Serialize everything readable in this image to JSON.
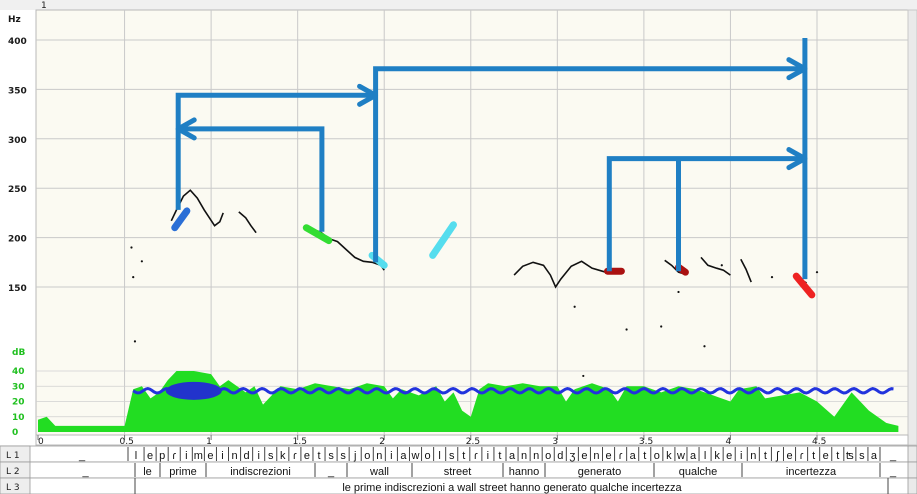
{
  "window": {
    "left_marker": "1"
  },
  "chart_data": {
    "type": "line",
    "ylabel": "Hz",
    "db_label": "dB",
    "yticks": [
      150,
      200,
      250,
      300,
      350,
      400
    ],
    "ylim": [
      100,
      420
    ],
    "db_ticks": [
      0,
      10,
      20,
      30,
      40
    ],
    "xticks": [
      0,
      0.5,
      1,
      1.5,
      2,
      2.5,
      3,
      3.5,
      4,
      4.5
    ],
    "xtick_labels": [
      "0",
      "0.5",
      "1",
      "1.5",
      "2",
      "2.5",
      "3",
      "3.5",
      "4",
      "4.5"
    ],
    "xlim": [
      0,
      4.97
    ],
    "pitch_contour": [
      {
        "name": "",
        "points": [
          [
            0.77,
            217
          ],
          [
            0.8,
            228
          ],
          [
            0.84,
            242
          ],
          [
            0.88,
            248
          ],
          [
            0.92,
            240
          ],
          [
            0.96,
            228
          ],
          [
            0.99,
            220
          ],
          [
            1.02,
            212
          ],
          [
            1.05,
            216
          ],
          [
            1.07,
            225
          ]
        ]
      },
      {
        "name": "",
        "points": [
          [
            1.16,
            226
          ],
          [
            1.2,
            220
          ],
          [
            1.23,
            212
          ],
          [
            1.26,
            205
          ]
        ]
      },
      {
        "name": "",
        "points": [
          [
            1.58,
            208
          ],
          [
            1.63,
            206
          ],
          [
            1.68,
            199
          ],
          [
            1.73,
            196
          ],
          [
            1.78,
            188
          ],
          [
            1.83,
            180
          ],
          [
            1.88,
            176
          ],
          [
            1.93,
            175
          ],
          [
            1.98,
            172
          ],
          [
            2.0,
            167
          ]
        ]
      },
      {
        "name": "",
        "points": [
          [
            2.75,
            162
          ],
          [
            2.8,
            171
          ],
          [
            2.86,
            175
          ],
          [
            2.92,
            172
          ],
          [
            2.96,
            162
          ],
          [
            2.99,
            150
          ],
          [
            3.02,
            158
          ],
          [
            3.08,
            171
          ],
          [
            3.14,
            176
          ],
          [
            3.2,
            169
          ],
          [
            3.26,
            166
          ],
          [
            3.3,
            164
          ]
        ]
      },
      {
        "name": "",
        "points": [
          [
            3.62,
            177
          ],
          [
            3.66,
            172
          ],
          [
            3.7,
            165
          ],
          [
            3.74,
            163
          ]
        ]
      },
      {
        "name": "",
        "points": [
          [
            3.83,
            180
          ],
          [
            3.87,
            172
          ],
          [
            3.92,
            169
          ],
          [
            3.96,
            167
          ],
          [
            4.0,
            162
          ]
        ]
      },
      {
        "name": "",
        "points": [
          [
            4.06,
            178
          ],
          [
            4.09,
            168
          ],
          [
            4.12,
            155
          ]
        ]
      },
      {
        "name": "",
        "points": [
          [
            4.4,
            158
          ],
          [
            4.44,
            154
          ]
        ]
      }
    ],
    "highlights": [
      {
        "color": "#2b6fd6",
        "from": [
          0.79,
          210
        ],
        "to": [
          0.86,
          227
        ]
      },
      {
        "color": "#33dd33",
        "from": [
          1.55,
          210
        ],
        "to": [
          1.68,
          197
        ]
      },
      {
        "color": "#55ddee",
        "from": [
          1.93,
          182
        ],
        "to": [
          2.0,
          172
        ]
      },
      {
        "color": "#55ddee",
        "from": [
          2.28,
          182
        ],
        "to": [
          2.4,
          213
        ]
      },
      {
        "color": "#aa1111",
        "from": [
          3.29,
          166
        ],
        "to": [
          3.37,
          166
        ]
      },
      {
        "color": "#aa1111",
        "from": [
          3.7,
          170
        ],
        "to": [
          3.74,
          165
        ]
      },
      {
        "color": "#ee2222",
        "from": [
          4.38,
          161
        ],
        "to": [
          4.47,
          142
        ]
      }
    ],
    "arrow_color": "#1f7fc4",
    "arrows": [
      {
        "path": [
          [
            1.64,
            206
          ],
          [
            1.64,
            310
          ],
          [
            0.81,
            310
          ]
        ]
      },
      {
        "path": [
          [
            0.81,
            228
          ],
          [
            0.81,
            344
          ],
          [
            1.95,
            344
          ]
        ]
      },
      {
        "path": [
          [
            1.95,
            175
          ],
          [
            1.95,
            371
          ],
          [
            4.43,
            371
          ]
        ]
      },
      {
        "path": [
          [
            3.3,
            166
          ],
          [
            3.3,
            280
          ],
          [
            4.43,
            280
          ]
        ]
      },
      {
        "path": [
          [
            3.7,
            166
          ],
          [
            3.7,
            280
          ]
        ]
      },
      {
        "path": [
          [
            4.43,
            158
          ],
          [
            4.43,
            402
          ]
        ]
      }
    ],
    "tiers": [
      {
        "label": "L 1",
        "cells": [
          "_",
          "l",
          "e",
          "p",
          "ɾ",
          "i",
          "m",
          "e",
          "i",
          "n",
          "d",
          "i",
          "s",
          "k",
          "ɾ",
          "e",
          "t",
          "s",
          "s",
          "j",
          "o",
          "n",
          "i",
          "a",
          "w",
          "o",
          "l",
          "s",
          "t",
          "ɾ",
          "i",
          "t",
          "a",
          "n",
          "n",
          "o",
          "d",
          "ʒ",
          "e",
          "n",
          "e",
          "ɾ",
          "a",
          "t",
          "o",
          "k",
          "w",
          "a",
          "l",
          "k",
          "e",
          "i",
          "n",
          "t",
          "ʃ",
          "e",
          "ɾ",
          "t",
          "e",
          "t",
          "ʦ",
          "s",
          "a",
          "_"
        ]
      },
      {
        "label": "L 2",
        "cells": [
          "_",
          "le",
          "prime",
          "indiscrezioni",
          "_",
          "wall",
          "street",
          "hanno",
          "generato",
          "qualche",
          "incertezza",
          "_"
        ]
      },
      {
        "label": "L 3",
        "text": "le prime indiscrezioni a wall street hanno generato qualche incertezza"
      }
    ]
  }
}
